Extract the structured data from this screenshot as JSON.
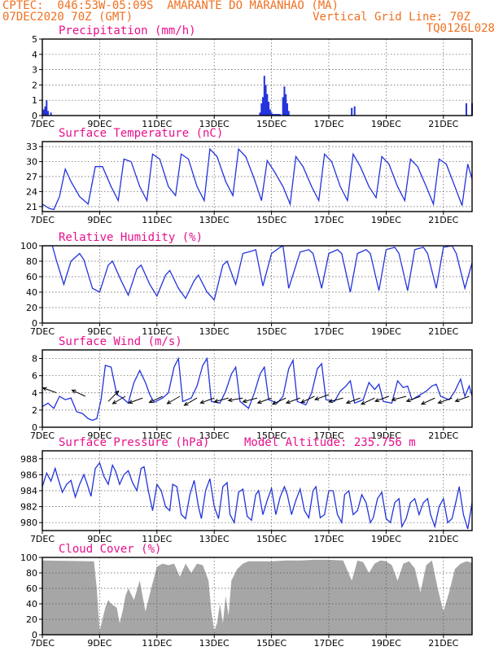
{
  "header": {
    "line1": "CPTEC:  046:53W-05:09S  AMARANTE DO MARANHAO (MA)",
    "line2_left": "07DEC2020 70Z (GMT)",
    "line2_right": "Vertical Grid Line: 70Z",
    "line3_right": "TQ0126L028"
  },
  "colors": {
    "header": "#f07020",
    "title": "#e8108c",
    "line": "#2233dd",
    "cloud": "#a6a6a6"
  },
  "x_axis": {
    "range": [
      0,
      15
    ],
    "ticks": [
      0,
      2,
      4,
      6,
      8,
      10,
      12,
      14
    ],
    "labels": [
      "7DEC",
      "9DEC",
      "11DEC",
      "13DEC",
      "15DEC",
      "17DEC",
      "19DEC",
      "21DEC"
    ]
  },
  "chart_data": [
    {
      "type": "bar",
      "title": "Precipitation  (mm/h)",
      "ylim": [
        0,
        5
      ],
      "yticks": [
        0,
        1,
        2,
        3,
        4,
        5
      ],
      "x": [
        0.05,
        0.1,
        0.15,
        0.2,
        0.3,
        7.6,
        7.65,
        7.7,
        7.75,
        7.8,
        7.85,
        7.9,
        7.95,
        8.0,
        8.05,
        8.1,
        8.15,
        8.2,
        8.25,
        8.3,
        8.4,
        8.45,
        8.5,
        8.55,
        8.6,
        10.8,
        10.9,
        14.8,
        15.0
      ],
      "values": [
        0.4,
        0.6,
        1.0,
        0.3,
        0.2,
        0.2,
        0.8,
        1.2,
        2.6,
        2.0,
        1.4,
        0.9,
        0.4,
        0.2,
        0.1,
        0.1,
        0.1,
        0.1,
        0.1,
        0.1,
        1.2,
        1.9,
        1.4,
        0.8,
        0.3,
        0.5,
        0.6,
        0.8,
        0.8
      ]
    },
    {
      "type": "line",
      "title": "Surface Temperature  (nC)",
      "ylim": [
        20,
        34
      ],
      "yticks": [
        21,
        24,
        27,
        30,
        33
      ],
      "x": [
        0,
        0.25,
        0.4,
        0.6,
        0.8,
        1.0,
        1.3,
        1.6,
        1.85,
        2.1,
        2.4,
        2.65,
        2.85,
        3.1,
        3.4,
        3.65,
        3.85,
        4.1,
        4.4,
        4.65,
        4.85,
        5.1,
        5.4,
        5.65,
        5.85,
        6.1,
        6.4,
        6.65,
        6.85,
        7.1,
        7.4,
        7.65,
        7.85,
        8.1,
        8.4,
        8.65,
        8.85,
        9.1,
        9.4,
        9.65,
        9.85,
        10.1,
        10.4,
        10.65,
        10.85,
        11.1,
        11.4,
        11.65,
        11.85,
        12.1,
        12.4,
        12.65,
        12.85,
        13.1,
        13.4,
        13.65,
        13.85,
        14.1,
        14.4,
        14.65,
        14.85,
        15.0
      ],
      "values": [
        21.5,
        20.6,
        20.4,
        23,
        28.5,
        26,
        23,
        21.5,
        29,
        29,
        25,
        22.2,
        30.5,
        30,
        25,
        22.2,
        31.5,
        30.5,
        25,
        23.2,
        31.5,
        30.5,
        25,
        22.2,
        32.5,
        31,
        26,
        23.2,
        32.5,
        31,
        26.5,
        22.2,
        30.2,
        28,
        25,
        21.5,
        31,
        29,
        25,
        22.2,
        31.5,
        30,
        25,
        22.2,
        31.5,
        29,
        25,
        22.8,
        31,
        29.5,
        25,
        22.2,
        30.5,
        29,
        25,
        21.5,
        30.5,
        29.5,
        25,
        21.2,
        29.5,
        26.5
      ]
    },
    {
      "type": "line",
      "title": "Relative Humidity  (%)",
      "ylim": [
        0,
        100
      ],
      "yticks": [
        0,
        20,
        40,
        60,
        80,
        100
      ],
      "x": [
        0,
        0.35,
        0.5,
        0.75,
        1.0,
        1.3,
        1.45,
        1.75,
        2.0,
        2.3,
        2.45,
        2.75,
        3.0,
        3.3,
        3.45,
        3.75,
        4.0,
        4.3,
        4.45,
        4.75,
        5.0,
        5.3,
        5.45,
        5.75,
        6.0,
        6.3,
        6.45,
        6.75,
        7.0,
        7.3,
        7.45,
        7.7,
        8.0,
        8.3,
        8.4,
        8.6,
        9.0,
        9.3,
        9.45,
        9.75,
        10.0,
        10.3,
        10.45,
        10.75,
        11.0,
        11.3,
        11.45,
        11.75,
        12.0,
        12.3,
        12.45,
        12.75,
        13.0,
        13.3,
        13.45,
        13.75,
        14.0,
        14.3,
        14.45,
        14.75,
        15.0
      ],
      "values": [
        100,
        100,
        80,
        50,
        80,
        90,
        82,
        45,
        40,
        75,
        80,
        55,
        36,
        70,
        75,
        50,
        35,
        62,
        68,
        45,
        32,
        55,
        62,
        40,
        30,
        75,
        80,
        50,
        90,
        93,
        95,
        48,
        90,
        98,
        100,
        45,
        92,
        95,
        90,
        45,
        90,
        95,
        90,
        40,
        90,
        95,
        90,
        42,
        95,
        98,
        90,
        42,
        95,
        98,
        90,
        45,
        98,
        100,
        90,
        45,
        78
      ]
    },
    {
      "type": "line",
      "title": "Surface Wind  (m/s)",
      "ylim": [
        0,
        9
      ],
      "yticks": [
        0,
        2,
        4,
        6,
        8
      ],
      "x": [
        0,
        0.2,
        0.4,
        0.6,
        0.8,
        1.0,
        1.2,
        1.4,
        1.6,
        1.75,
        1.9,
        2.05,
        2.2,
        2.4,
        2.6,
        2.8,
        3.0,
        3.2,
        3.4,
        3.6,
        3.75,
        3.9,
        4.2,
        4.4,
        4.6,
        4.75,
        4.9,
        5.2,
        5.4,
        5.6,
        5.75,
        5.9,
        6.2,
        6.4,
        6.6,
        6.75,
        6.9,
        7.2,
        7.4,
        7.6,
        7.75,
        7.9,
        8.2,
        8.4,
        8.6,
        8.75,
        8.9,
        9.2,
        9.4,
        9.6,
        9.75,
        9.9,
        10.2,
        10.4,
        10.6,
        10.75,
        10.9,
        11.2,
        11.4,
        11.6,
        11.75,
        11.9,
        12.2,
        12.4,
        12.6,
        12.75,
        12.9,
        13.2,
        13.4,
        13.6,
        13.75,
        13.9,
        14.2,
        14.4,
        14.6,
        14.75,
        14.9,
        15.0
      ],
      "values": [
        2.4,
        2.8,
        2.2,
        3.6,
        3.2,
        3.4,
        1.8,
        1.6,
        1.0,
        0.8,
        1.0,
        3.2,
        7.2,
        7.0,
        3.8,
        3.4,
        2.8,
        5.2,
        6.6,
        5.2,
        3.8,
        2.9,
        3.4,
        4.0,
        7.0,
        8.0,
        3.0,
        3.4,
        4.8,
        7.2,
        8.0,
        3.0,
        2.8,
        4.2,
        6.2,
        7.0,
        3.0,
        2.2,
        4.0,
        6.2,
        7.0,
        3.2,
        2.8,
        3.6,
        6.8,
        7.8,
        3.0,
        2.6,
        4.0,
        6.8,
        7.4,
        3.2,
        3.0,
        4.2,
        4.8,
        5.4,
        2.8,
        3.2,
        5.2,
        4.4,
        5.0,
        3.0,
        2.8,
        5.4,
        4.6,
        4.8,
        3.2,
        3.8,
        4.2,
        4.8,
        5.0,
        3.6,
        3.2,
        4.2,
        5.6,
        3.6,
        4.8,
        3.6
      ],
      "wind_vectors": {
        "x": [
          0.5,
          1.5,
          2.3,
          2.9,
          3.5,
          4.2,
          4.8,
          5.4,
          6.0,
          6.5,
          7.0,
          7.5,
          8.0,
          8.5,
          9.0,
          9.5,
          10.0,
          10.5,
          11.1,
          11.6,
          12.1,
          12.7,
          13.2,
          13.7,
          14.3,
          14.9
        ],
        "y": [
          4.0,
          3.6,
          3.0,
          3.6,
          3.4,
          3.6,
          3.6,
          3.4,
          3.4,
          3.4,
          3.4,
          3.4,
          3.4,
          3.4,
          3.4,
          3.6,
          3.8,
          3.4,
          3.4,
          3.4,
          3.6,
          3.6,
          3.6,
          3.4,
          3.4,
          3.6
        ],
        "angle_deg": [
          160,
          155,
          45,
          210,
          200,
          205,
          210,
          210,
          200,
          195,
          190,
          195,
          200,
          205,
          200,
          205,
          200,
          195,
          200,
          205,
          200,
          195,
          200,
          205,
          200,
          200
        ]
      }
    },
    {
      "type": "line",
      "title": "Surface Pressure  (hPa)",
      "annotation": "Model Altitude: 235.756  m",
      "ylim": [
        979,
        989
      ],
      "yticks": [
        980,
        982,
        984,
        986,
        988
      ],
      "x": [
        0,
        0.15,
        0.3,
        0.45,
        0.55,
        0.7,
        0.85,
        1.0,
        1.15,
        1.3,
        1.45,
        1.55,
        1.7,
        1.85,
        2.0,
        2.15,
        2.3,
        2.45,
        2.55,
        2.7,
        2.85,
        3.0,
        3.15,
        3.3,
        3.45,
        3.55,
        3.7,
        3.85,
        4.0,
        4.15,
        4.3,
        4.45,
        4.55,
        4.7,
        4.85,
        5.0,
        5.15,
        5.3,
        5.45,
        5.55,
        5.7,
        5.85,
        6.0,
        6.15,
        6.3,
        6.45,
        6.55,
        6.7,
        6.85,
        7.0,
        7.15,
        7.3,
        7.45,
        7.55,
        7.7,
        7.85,
        8.0,
        8.15,
        8.3,
        8.45,
        8.55,
        8.7,
        8.85,
        9.0,
        9.15,
        9.3,
        9.45,
        9.55,
        9.7,
        9.85,
        10.0,
        10.15,
        10.3,
        10.45,
        10.55,
        10.7,
        10.85,
        11.0,
        11.15,
        11.3,
        11.45,
        11.55,
        11.7,
        11.85,
        12.0,
        12.15,
        12.3,
        12.45,
        12.55,
        12.7,
        12.85,
        13.0,
        13.15,
        13.3,
        13.45,
        13.55,
        13.7,
        13.85,
        14.0,
        14.15,
        14.3,
        14.45,
        14.55,
        14.7,
        14.85,
        15.0
      ],
      "values": [
        984.5,
        986.2,
        985.2,
        986.8,
        985.5,
        983.8,
        984.8,
        985.3,
        983.2,
        984.8,
        986.0,
        985.0,
        983.3,
        986.8,
        987.5,
        985.8,
        984.8,
        987.2,
        986.5,
        984.8,
        986.0,
        986.5,
        985.0,
        984.0,
        986.8,
        987.0,
        984.0,
        981.5,
        984.8,
        984.0,
        982.0,
        981.5,
        984.8,
        984.5,
        981.0,
        980.5,
        983.5,
        985.3,
        982.0,
        980.5,
        984.0,
        985.5,
        982.0,
        980.5,
        984.5,
        985.0,
        981.0,
        980.0,
        983.8,
        984.2,
        980.8,
        980.3,
        983.5,
        984.0,
        981.0,
        982.8,
        984.3,
        981.0,
        983.2,
        984.5,
        983.5,
        981.0,
        982.8,
        984.2,
        981.5,
        980.6,
        984.0,
        984.5,
        980.6,
        981.0,
        984.0,
        984.0,
        981.0,
        980.0,
        983.5,
        984.0,
        981.0,
        981.5,
        983.5,
        982.5,
        980.0,
        980.6,
        983.0,
        983.8,
        980.5,
        980.0,
        982.5,
        983.0,
        979.5,
        980.5,
        982.5,
        983.0,
        981.0,
        982.5,
        983.0,
        981.0,
        979.5,
        982.0,
        983.0,
        980.0,
        980.5,
        982.8,
        984.5,
        981.0,
        979.2,
        982.5
      ]
    },
    {
      "type": "area",
      "title": "Cloud Cover  (%)",
      "ylim": [
        0,
        100
      ],
      "yticks": [
        0,
        20,
        40,
        60,
        80,
        100
      ],
      "x": [
        0,
        1.8,
        1.9,
        2.0,
        2.1,
        2.2,
        2.3,
        2.4,
        2.6,
        2.7,
        2.8,
        2.9,
        3.0,
        3.2,
        3.4,
        3.6,
        3.8,
        4.0,
        4.2,
        4.4,
        4.6,
        4.8,
        5.0,
        5.2,
        5.4,
        5.6,
        5.8,
        5.9,
        6.0,
        6.1,
        6.2,
        6.3,
        6.4,
        6.5,
        6.6,
        6.8,
        7.0,
        7.2,
        7.4,
        7.6,
        8.0,
        8.5,
        9.0,
        9.5,
        10.0,
        10.5,
        10.8,
        11.0,
        11.2,
        11.4,
        11.6,
        11.8,
        12.0,
        12.2,
        12.4,
        12.6,
        12.8,
        13.0,
        13.2,
        13.4,
        13.6,
        13.8,
        14.0,
        14.2,
        14.4,
        14.6,
        14.8,
        15.0
      ],
      "values": [
        96,
        95,
        60,
        5,
        20,
        35,
        45,
        40,
        35,
        15,
        30,
        50,
        60,
        45,
        70,
        30,
        60,
        88,
        92,
        90,
        92,
        75,
        92,
        80,
        92,
        90,
        70,
        30,
        5,
        15,
        40,
        15,
        50,
        25,
        70,
        85,
        92,
        95,
        95,
        95,
        95,
        96,
        96,
        97,
        97,
        96,
        70,
        96,
        94,
        80,
        92,
        96,
        95,
        90,
        70,
        92,
        95,
        86,
        55,
        90,
        96,
        60,
        30,
        55,
        85,
        92,
        95,
        93
      ]
    }
  ]
}
